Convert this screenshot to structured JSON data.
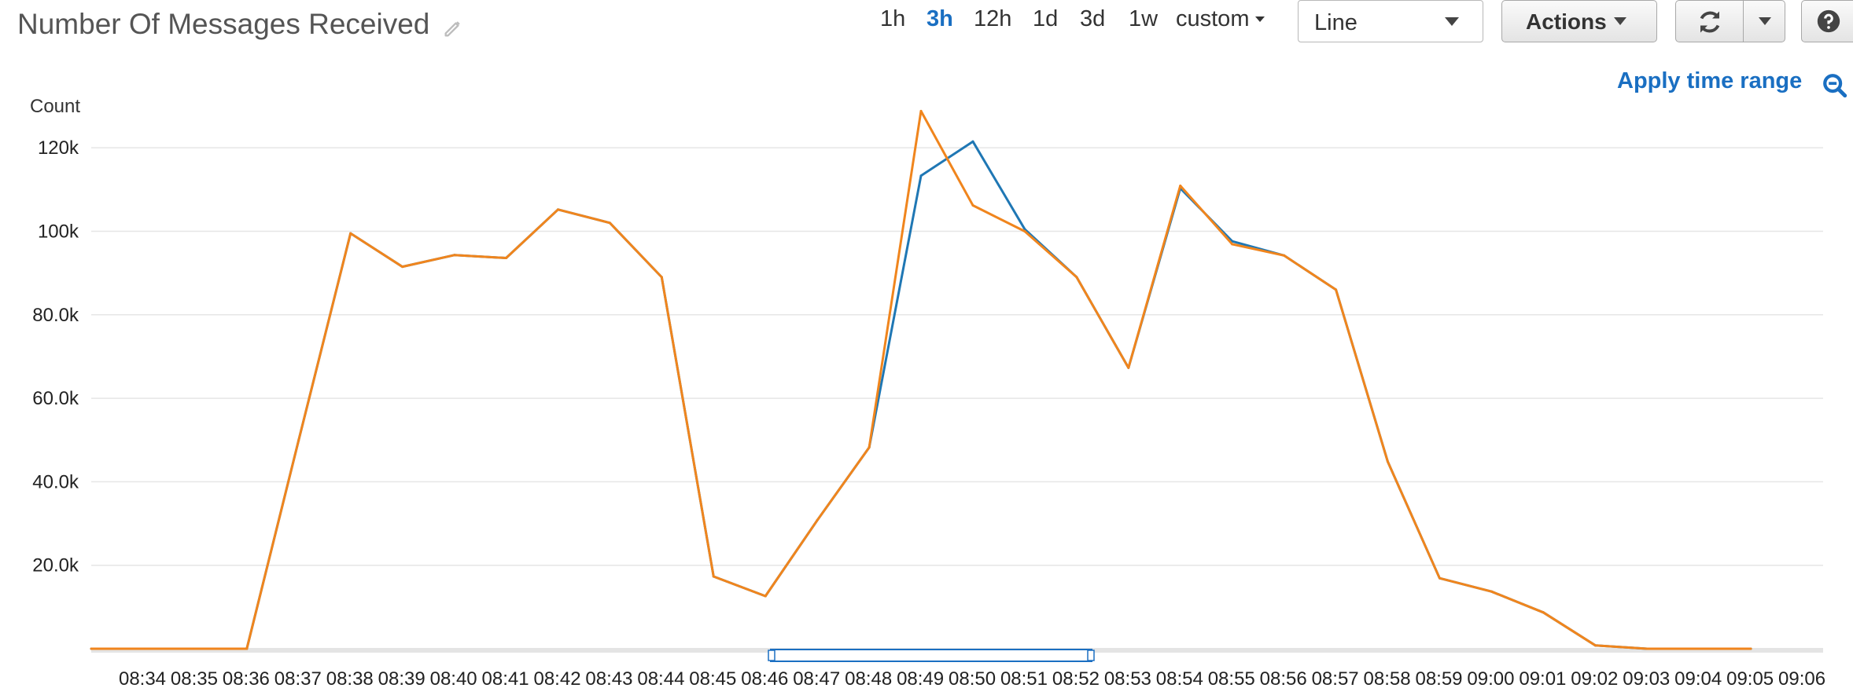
{
  "header": {
    "title": "Number Of Messages Received",
    "time_ranges": [
      {
        "label": "1h",
        "active": false
      },
      {
        "label": "3h",
        "active": true
      },
      {
        "label": "12h",
        "active": false
      },
      {
        "label": "1d",
        "active": false
      },
      {
        "label": "3d",
        "active": false
      },
      {
        "label": "1w",
        "active": false
      },
      {
        "label": "custom",
        "active": false
      }
    ],
    "chart_type_select": "Line",
    "actions_label": "Actions",
    "apply_time_range": "Apply time range"
  },
  "icons": {
    "edit": "pencil-icon",
    "refresh": "refresh-icon",
    "help": "help-icon",
    "zoom": "zoom-out-icon"
  },
  "colors": {
    "accent": "#1a6fc2",
    "series_blue": "#1f77b4",
    "series_orange": "#f0851d",
    "grid": "#e6e6e6"
  },
  "chart_data": {
    "type": "line",
    "ylabel": "Count",
    "ylim": [
      0,
      130000
    ],
    "yticks": [
      20000,
      40000,
      60000,
      80000,
      100000,
      120000
    ],
    "ytick_labels": [
      "20.0k",
      "40.0k",
      "60.0k",
      "80.0k",
      "100k",
      "120k"
    ],
    "grid": true,
    "x": [
      "08:34",
      "08:35",
      "08:36",
      "08:37",
      "08:38",
      "08:39",
      "08:40",
      "08:41",
      "08:42",
      "08:43",
      "08:44",
      "08:45",
      "08:46",
      "08:47",
      "08:48",
      "08:49",
      "08:50",
      "08:51",
      "08:52",
      "08:53",
      "08:54",
      "08:55",
      "08:56",
      "08:57",
      "08:58",
      "08:59",
      "09:00",
      "09:01",
      "09:02",
      "09:03",
      "09:04",
      "09:05",
      "09:06"
    ],
    "series": [
      {
        "color": "#1f77b4",
        "values": [
          0,
          0,
          0,
          0,
          50000,
          99500,
          91500,
          94300,
          93600,
          105200,
          102000,
          89000,
          17300,
          12600,
          30800,
          48200,
          113300,
          121500,
          100500,
          89000,
          67300,
          110300,
          97600,
          94200,
          86000,
          44800,
          16900,
          13700,
          8700,
          800,
          0,
          0,
          0
        ]
      },
      {
        "color": "#f0851d",
        "values": [
          0,
          0,
          0,
          0,
          50000,
          99500,
          91500,
          94300,
          93600,
          105200,
          102000,
          89000,
          17300,
          12600,
          30800,
          48200,
          128800,
          106200,
          100000,
          89000,
          67300,
          110900,
          96900,
          94200,
          86000,
          44800,
          16900,
          13700,
          8700,
          800,
          0,
          0,
          0
        ]
      }
    ]
  }
}
